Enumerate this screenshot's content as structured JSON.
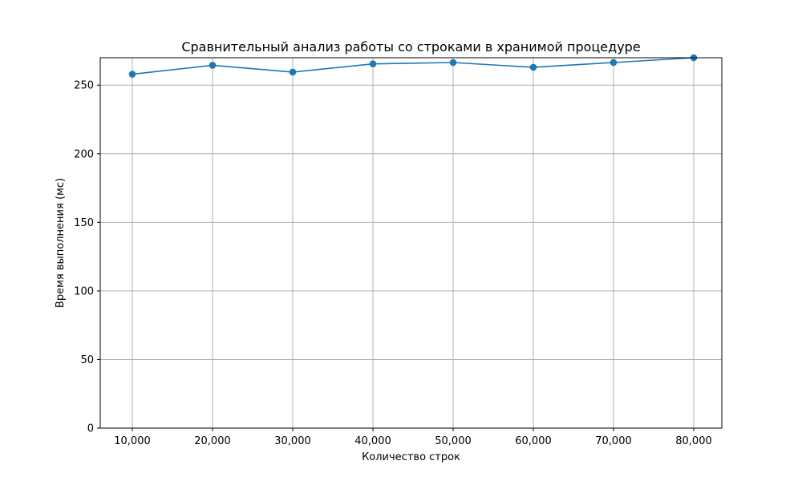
{
  "chart_data": {
    "type": "line",
    "title": "Сравнительный анализ работы со строками в хранимой процедуре",
    "xlabel": "Количество строк",
    "ylabel": "Время выполнения (мс)",
    "x": [
      10000,
      20000,
      30000,
      40000,
      50000,
      60000,
      70000,
      80000
    ],
    "x_tick_labels": [
      "10,000",
      "20,000",
      "30,000",
      "40,000",
      "50,000",
      "60,000",
      "70,000",
      "80,000"
    ],
    "series": [
      {
        "values": [
          258,
          264.5,
          259.5,
          265.5,
          266.5,
          263,
          266.5,
          270
        ]
      }
    ],
    "xlim": [
      6000,
      83500
    ],
    "ylim": [
      0,
      270
    ],
    "y_ticks": [
      0,
      50,
      100,
      150,
      200,
      250
    ],
    "y_tick_labels": [
      "0",
      "50",
      "100",
      "150",
      "200",
      "250"
    ],
    "grid": true,
    "line_color": "#1f77b4",
    "marker": "circle"
  }
}
